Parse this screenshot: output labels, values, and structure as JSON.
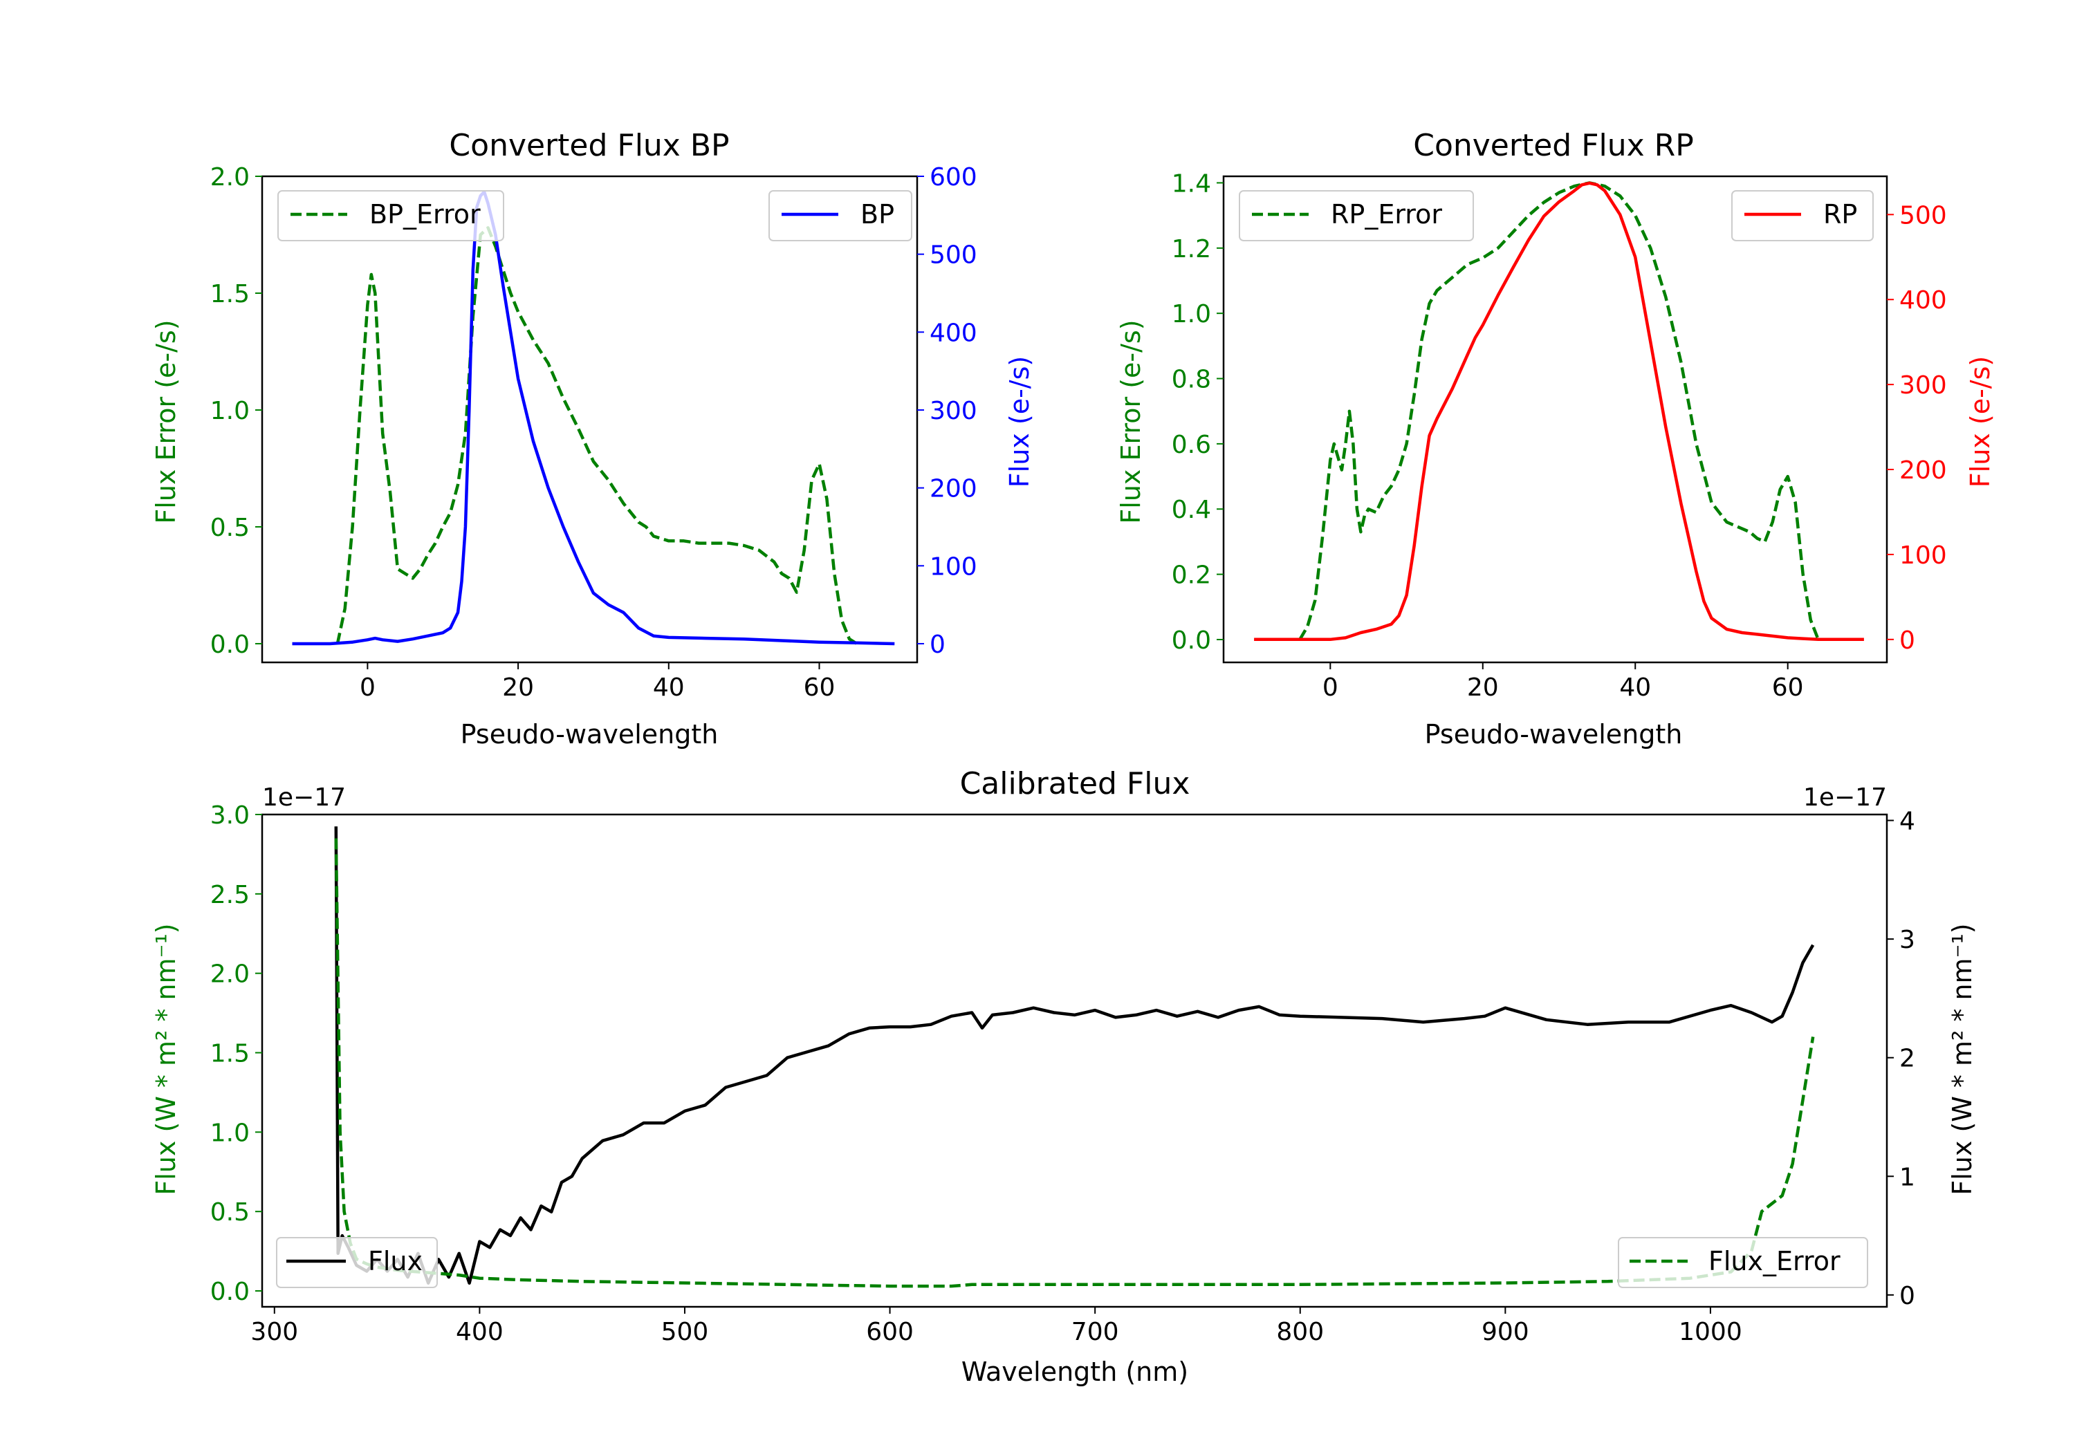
{
  "colors": {
    "green": "#008000",
    "blue": "#0000ff",
    "red": "#ff0000",
    "black": "#000000"
  },
  "chart_data": [
    {
      "type": "line",
      "title": "Converted Flux BP",
      "xlabel": "Pseudo-wavelength",
      "ylabel_left": "Flux Error (e-/s)",
      "ylabel_right": "Flux (e-/s)",
      "xlim": [
        -14,
        73
      ],
      "ylim_left": [
        -0.08,
        2.0
      ],
      "ylim_right": [
        -24,
        600
      ],
      "xticks": [
        0,
        20,
        40,
        60
      ],
      "xtick_labels": [
        "0",
        "20",
        "40",
        "60"
      ],
      "yticks_left": [
        0.0,
        0.5,
        1.0,
        1.5,
        2.0
      ],
      "ytick_labels_left": [
        "0.0",
        "0.5",
        "1.0",
        "1.5",
        "2.0"
      ],
      "yticks_right": [
        0,
        100,
        200,
        300,
        400,
        500,
        600
      ],
      "ytick_labels_right": [
        "0",
        "100",
        "200",
        "300",
        "400",
        "500",
        "600"
      ],
      "legend": [
        "BP_Error",
        "BP"
      ],
      "series": [
        {
          "name": "BP_Error",
          "axis": "left",
          "style": "dashed",
          "color": "green",
          "x": [
            -4,
            -3,
            -2,
            -1,
            0,
            0.5,
            1,
            2,
            3,
            4,
            5,
            6,
            7,
            8,
            9,
            10,
            11,
            12,
            13,
            14,
            15,
            16,
            17,
            18,
            19,
            20,
            22,
            24,
            26,
            28,
            30,
            32,
            34,
            36,
            37,
            38,
            40,
            42,
            44,
            46,
            48,
            50,
            52,
            54,
            55,
            56,
            57,
            58,
            59,
            60,
            61,
            62,
            63,
            64,
            65
          ],
          "y": [
            0.0,
            0.15,
            0.5,
            1.0,
            1.45,
            1.58,
            1.5,
            0.9,
            0.65,
            0.32,
            0.3,
            0.28,
            0.32,
            0.38,
            0.43,
            0.5,
            0.56,
            0.68,
            0.9,
            1.4,
            1.75,
            1.78,
            1.7,
            1.6,
            1.5,
            1.42,
            1.3,
            1.2,
            1.05,
            0.92,
            0.78,
            0.7,
            0.6,
            0.52,
            0.5,
            0.46,
            0.44,
            0.44,
            0.43,
            0.43,
            0.43,
            0.42,
            0.4,
            0.35,
            0.3,
            0.28,
            0.22,
            0.4,
            0.7,
            0.77,
            0.62,
            0.3,
            0.1,
            0.02,
            0.0
          ]
        },
        {
          "name": "BP",
          "axis": "right",
          "style": "solid",
          "color": "blue",
          "x": [
            -10,
            -5,
            -2,
            0,
            1,
            2,
            4,
            6,
            8,
            10,
            11,
            12,
            12.5,
            13,
            13.5,
            14,
            14.5,
            15,
            15.5,
            16,
            17,
            18,
            20,
            22,
            24,
            26,
            28,
            30,
            32,
            34,
            36,
            38,
            40,
            45,
            50,
            55,
            60,
            65,
            70
          ],
          "y": [
            0,
            0,
            2,
            5,
            7,
            5,
            3,
            6,
            10,
            14,
            20,
            40,
            80,
            150,
            300,
            480,
            560,
            575,
            580,
            565,
            525,
            460,
            340,
            260,
            200,
            150,
            105,
            65,
            50,
            40,
            20,
            10,
            8,
            7,
            6,
            4,
            2,
            1,
            0
          ]
        }
      ]
    },
    {
      "type": "line",
      "title": "Converted Flux RP",
      "xlabel": "Pseudo-wavelength",
      "ylabel_left": "Flux Error (e-/s)",
      "ylabel_right": "Flux (e-/s)",
      "xlim": [
        -14,
        73
      ],
      "ylim_left": [
        -0.07,
        1.42
      ],
      "ylim_right": [
        -27,
        545
      ],
      "xticks": [
        0,
        20,
        40,
        60
      ],
      "xtick_labels": [
        "0",
        "20",
        "40",
        "60"
      ],
      "yticks_left": [
        0.0,
        0.2,
        0.4,
        0.6,
        0.8,
        1.0,
        1.2,
        1.4
      ],
      "ytick_labels_left": [
        "0.0",
        "0.2",
        "0.4",
        "0.6",
        "0.8",
        "1.0",
        "1.2",
        "1.4"
      ],
      "yticks_right": [
        0,
        100,
        200,
        300,
        400,
        500
      ],
      "ytick_labels_right": [
        "0",
        "100",
        "200",
        "300",
        "400",
        "500"
      ],
      "legend": [
        "RP_Error",
        "RP"
      ],
      "series": [
        {
          "name": "RP_Error",
          "axis": "left",
          "style": "dashed",
          "color": "green",
          "x": [
            -4,
            -3,
            -2,
            -1,
            0,
            0.5,
            1,
            1.5,
            2,
            2.5,
            3,
            3.5,
            4,
            4.5,
            5,
            6,
            7,
            8,
            9,
            10,
            11,
            12,
            13,
            14,
            16,
            18,
            20,
            22,
            24,
            26,
            28,
            30,
            32,
            34,
            36,
            38,
            40,
            42,
            44,
            46,
            48,
            50,
            52,
            54,
            55,
            56,
            57,
            58,
            59,
            60,
            61,
            62,
            63,
            64
          ],
          "y": [
            0.0,
            0.04,
            0.12,
            0.32,
            0.55,
            0.6,
            0.56,
            0.52,
            0.6,
            0.7,
            0.6,
            0.4,
            0.33,
            0.38,
            0.4,
            0.39,
            0.44,
            0.47,
            0.52,
            0.6,
            0.75,
            0.92,
            1.03,
            1.07,
            1.11,
            1.15,
            1.17,
            1.2,
            1.25,
            1.3,
            1.34,
            1.37,
            1.39,
            1.4,
            1.39,
            1.36,
            1.3,
            1.2,
            1.05,
            0.85,
            0.6,
            0.42,
            0.36,
            0.34,
            0.33,
            0.31,
            0.3,
            0.36,
            0.46,
            0.5,
            0.42,
            0.2,
            0.06,
            0.0
          ]
        },
        {
          "name": "RP",
          "axis": "right",
          "style": "solid",
          "color": "red",
          "x": [
            -10,
            -5,
            -2,
            0,
            2,
            4,
            6,
            8,
            9,
            10,
            11,
            12,
            13,
            14,
            16,
            18,
            19,
            20,
            22,
            24,
            26,
            28,
            30,
            32,
            33,
            34,
            35,
            36,
            38,
            40,
            42,
            44,
            46,
            48,
            49,
            50,
            52,
            54,
            56,
            58,
            60,
            62,
            64,
            66,
            70
          ],
          "y": [
            0,
            0,
            0,
            0,
            2,
            8,
            12,
            18,
            28,
            52,
            110,
            180,
            240,
            260,
            295,
            335,
            355,
            370,
            405,
            438,
            470,
            498,
            515,
            528,
            535,
            537,
            535,
            528,
            500,
            450,
            350,
            250,
            160,
            80,
            45,
            25,
            12,
            8,
            6,
            4,
            2,
            1,
            0,
            0,
            0
          ]
        }
      ]
    },
    {
      "type": "line",
      "title": "Calibrated Flux",
      "xlabel": "Wavelength (nm)",
      "ylabel_left": "Flux (W * m² * nm⁻¹)",
      "ylabel_right": "Flux (W * m² * nm⁻¹)",
      "offset_left": "1e−17",
      "offset_right": "1e−17",
      "xlim": [
        294,
        1086
      ],
      "ylim_left": [
        -0.1,
        3.0
      ],
      "ylim_right": [
        -0.1,
        4.05
      ],
      "xticks": [
        300,
        400,
        500,
        600,
        700,
        800,
        900,
        1000
      ],
      "xtick_labels": [
        "300",
        "400",
        "500",
        "600",
        "700",
        "800",
        "900",
        "1000"
      ],
      "yticks_left": [
        0.0,
        0.5,
        1.0,
        1.5,
        2.0,
        2.5,
        3.0
      ],
      "ytick_labels_left": [
        "0.0",
        "0.5",
        "1.0",
        "1.5",
        "2.0",
        "2.5",
        "3.0"
      ],
      "yticks_right": [
        0,
        1,
        2,
        3,
        4
      ],
      "ytick_labels_right": [
        "0",
        "1",
        "2",
        "3",
        "4"
      ],
      "legend": [
        "Flux",
        "Flux_Error"
      ],
      "series": [
        {
          "name": "Flux",
          "axis": "right",
          "style": "solid",
          "color": "black",
          "x": [
            330,
            331,
            333,
            336,
            340,
            345,
            350,
            355,
            360,
            365,
            370,
            375,
            380,
            385,
            390,
            395,
            400,
            405,
            410,
            415,
            420,
            425,
            430,
            435,
            440,
            445,
            450,
            460,
            470,
            480,
            490,
            500,
            510,
            520,
            530,
            540,
            550,
            560,
            570,
            580,
            590,
            600,
            610,
            620,
            630,
            640,
            645,
            650,
            660,
            670,
            680,
            690,
            700,
            710,
            720,
            730,
            740,
            750,
            760,
            770,
            780,
            790,
            800,
            820,
            840,
            860,
            880,
            890,
            900,
            920,
            940,
            960,
            980,
            1000,
            1010,
            1020,
            1030,
            1035,
            1040,
            1045,
            1050
          ],
          "y": [
            3.95,
            0.35,
            0.5,
            0.4,
            0.25,
            0.2,
            0.3,
            0.2,
            0.3,
            0.15,
            0.35,
            0.1,
            0.3,
            0.15,
            0.35,
            0.1,
            0.45,
            0.4,
            0.55,
            0.5,
            0.65,
            0.55,
            0.75,
            0.7,
            0.95,
            1.0,
            1.15,
            1.3,
            1.35,
            1.45,
            1.45,
            1.55,
            1.6,
            1.75,
            1.8,
            1.85,
            2.0,
            2.05,
            2.1,
            2.2,
            2.25,
            2.26,
            2.26,
            2.28,
            2.35,
            2.38,
            2.25,
            2.36,
            2.38,
            2.42,
            2.38,
            2.36,
            2.4,
            2.34,
            2.36,
            2.4,
            2.35,
            2.39,
            2.34,
            2.4,
            2.43,
            2.36,
            2.35,
            2.34,
            2.33,
            2.3,
            2.33,
            2.35,
            2.42,
            2.32,
            2.28,
            2.3,
            2.3,
            2.4,
            2.44,
            2.38,
            2.3,
            2.35,
            2.55,
            2.8,
            2.95
          ]
        },
        {
          "name": "Flux_Error",
          "axis": "left",
          "style": "dashed",
          "color": "green",
          "x": [
            330,
            332,
            334,
            337,
            340,
            345,
            350,
            360,
            370,
            380,
            390,
            400,
            420,
            450,
            500,
            550,
            600,
            630,
            640,
            650,
            700,
            800,
            900,
            950,
            990,
            1010,
            1020,
            1025,
            1030,
            1035,
            1040,
            1045,
            1050
          ],
          "y": [
            2.85,
            1.0,
            0.5,
            0.3,
            0.2,
            0.17,
            0.15,
            0.13,
            0.12,
            0.11,
            0.1,
            0.08,
            0.07,
            0.06,
            0.05,
            0.04,
            0.03,
            0.03,
            0.04,
            0.04,
            0.04,
            0.04,
            0.05,
            0.06,
            0.08,
            0.12,
            0.25,
            0.5,
            0.55,
            0.6,
            0.8,
            1.2,
            1.6
          ]
        }
      ]
    }
  ]
}
